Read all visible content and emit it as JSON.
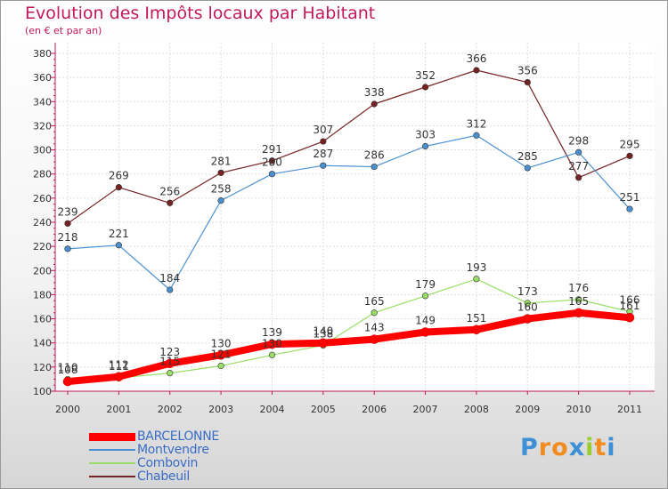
{
  "title": "Evolution des Impôts locaux par Habitant",
  "subtitle": "(en € et par an)",
  "logo": {
    "text": "Proxiti",
    "letters": [
      "P",
      "r",
      "o",
      "x",
      "i",
      "t",
      "i"
    ],
    "colors": [
      "#3d8fd6",
      "#f28c1e",
      "#f28c1e",
      "#3d8fd6",
      "#9acd32",
      "#f28c1e",
      "#3d8fd6"
    ]
  },
  "chart_data": {
    "type": "line",
    "title": "Evolution des Impôts locaux par Habitant",
    "subtitle": "(en € et par an)",
    "xlabel": "",
    "ylabel": "",
    "x": [
      "2000",
      "2001",
      "2002",
      "2003",
      "2004",
      "2005",
      "2006",
      "2007",
      "2008",
      "2009",
      "2010",
      "2011"
    ],
    "ylim": [
      100,
      380
    ],
    "yticks": [
      100,
      120,
      140,
      160,
      180,
      200,
      220,
      240,
      260,
      280,
      300,
      320,
      340,
      360,
      380
    ],
    "grid": true,
    "legend_position": "bottom-left",
    "series": [
      {
        "name": "BARCELONNE",
        "color": "#ff0000",
        "values": [
          108,
          112,
          123,
          130,
          139,
          140,
          143,
          149,
          151,
          160,
          165,
          161
        ]
      },
      {
        "name": "Montvendre",
        "color": "#4a90d0",
        "values": [
          218,
          221,
          184,
          258,
          280,
          287,
          286,
          303,
          312,
          285,
          298,
          251
        ]
      },
      {
        "name": "Combovin",
        "color": "#99dd66",
        "values": [
          110,
          111,
          115,
          121,
          130,
          138,
          165,
          179,
          193,
          173,
          176,
          166
        ]
      },
      {
        "name": "Chabeuil",
        "color": "#772222",
        "values": [
          239,
          269,
          256,
          281,
          291,
          307,
          338,
          352,
          366,
          356,
          277,
          295
        ]
      }
    ]
  }
}
